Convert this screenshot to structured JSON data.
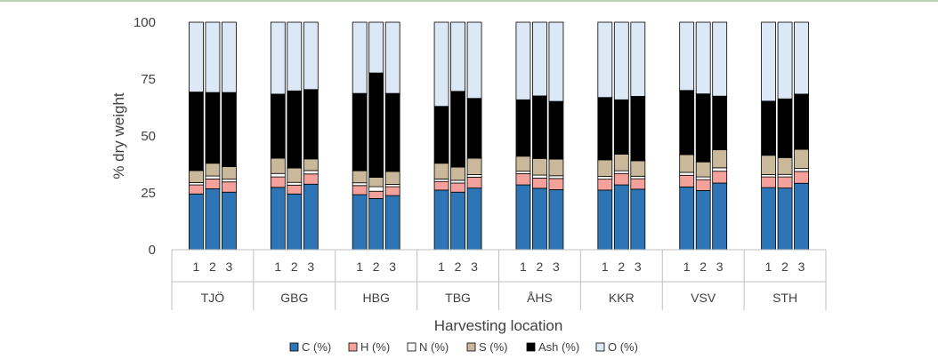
{
  "chart_data": {
    "type": "bar",
    "stacked": true,
    "title": "",
    "xlabel": "Harvesting location",
    "ylabel": "% dry weight",
    "ylim": [
      0,
      100
    ],
    "yticks": [
      "0",
      "25",
      "50",
      "75",
      "100"
    ],
    "grid": false,
    "legend_position": "bottom",
    "groups": [
      "TJÖ",
      "GBG",
      "HBG",
      "TBG",
      "ÅHS",
      "KKR",
      "VSV",
      "STH"
    ],
    "replicates": [
      "1",
      "2",
      "3"
    ],
    "series": [
      {
        "name": "C (%)",
        "color": "#2e75b6",
        "values": [
          24.5,
          26.8,
          25.3,
          27.4,
          24.5,
          28.8,
          24.2,
          22.5,
          23.8,
          26.2,
          25.3,
          27.1,
          28.5,
          27.0,
          26.4,
          26.2,
          28.5,
          26.6,
          27.6,
          26.0,
          29.3,
          27.3,
          27.1,
          29.2
        ]
      },
      {
        "name": "H (%)",
        "color": "#f4a19c",
        "values": [
          4.0,
          4.3,
          4.5,
          4.6,
          3.9,
          4.5,
          4.0,
          3.2,
          3.9,
          3.8,
          4.0,
          4.8,
          4.9,
          4.5,
          4.9,
          4.8,
          5.0,
          4.6,
          5.1,
          4.8,
          5.2,
          4.7,
          4.9,
          5.2
        ]
      },
      {
        "name": "N (%)",
        "color": "#ffffff",
        "values": [
          1.0,
          1.3,
          1.2,
          1.5,
          1.2,
          1.5,
          1.2,
          2.0,
          1.0,
          1.1,
          1.2,
          1.1,
          1.1,
          1.3,
          1.2,
          1.2,
          1.2,
          1.1,
          1.3,
          1.2,
          1.5,
          1.0,
          1.1,
          1.3
        ]
      },
      {
        "name": "S (%)",
        "color": "#c9b99a",
        "values": [
          5.3,
          5.6,
          5.5,
          6.7,
          6.3,
          5.1,
          5.3,
          4.1,
          5.7,
          6.9,
          5.8,
          7.2,
          6.6,
          7.3,
          7.3,
          7.3,
          7.3,
          6.8,
          7.8,
          6.6,
          7.9,
          8.5,
          7.4,
          8.4
        ]
      },
      {
        "name": "Ash (%)",
        "color": "#000000",
        "values": [
          34.5,
          31.1,
          32.6,
          28.2,
          33.9,
          30.5,
          34.0,
          45.9,
          34.3,
          25.0,
          33.3,
          26.3,
          24.8,
          27.5,
          25.4,
          27.4,
          23.9,
          28.3,
          28.2,
          29.9,
          23.6,
          23.8,
          25.8,
          24.3
        ]
      },
      {
        "name": "O (%)",
        "color": "#dce8f5",
        "values": [
          30.7,
          30.9,
          30.9,
          31.6,
          30.2,
          29.6,
          31.3,
          22.3,
          31.3,
          37.0,
          30.4,
          33.5,
          34.1,
          32.4,
          34.8,
          33.1,
          34.1,
          32.6,
          30.0,
          31.5,
          32.5,
          34.7,
          33.7,
          31.6
        ]
      }
    ]
  }
}
